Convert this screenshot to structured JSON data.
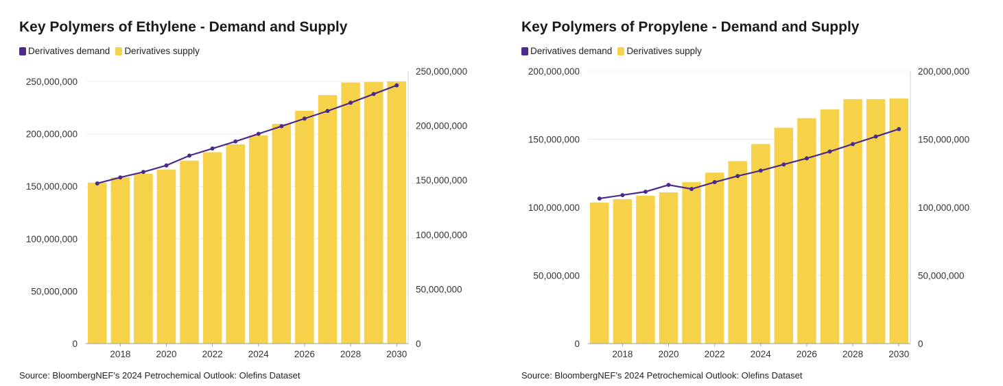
{
  "colors": {
    "demand": "#4b2a8c",
    "supply": "#f6d24a",
    "grid": "#ececec",
    "axis": "#999999"
  },
  "chart_data": [
    {
      "type": "bar",
      "title": "Key Polymers of Ethylene - Demand and Supply",
      "source": "Source: BloombergNEF’s 2024 Petrochemical Outlook: Olefins Dataset",
      "legend": [
        "Derivatives demand",
        "Derivatives supply"
      ],
      "legend_placement": "top-left",
      "x": [
        2017,
        2018,
        2019,
        2020,
        2021,
        2022,
        2023,
        2024,
        2025,
        2026,
        2027,
        2028,
        2029,
        2030
      ],
      "x_tick_labels": [
        "2018",
        "2020",
        "2022",
        "2024",
        "2026",
        "2028",
        "2030"
      ],
      "series": [
        {
          "name": "Derivatives supply",
          "type": "bar",
          "axis": "left",
          "values": [
            153500000,
            158500000,
            162000000,
            166000000,
            174500000,
            182500000,
            190000000,
            198500000,
            209500000,
            222000000,
            237000000,
            249000000,
            249500000,
            250000000
          ]
        },
        {
          "name": "Derivatives demand",
          "type": "line",
          "axis": "right",
          "values": [
            147000000,
            152500000,
            157500000,
            163500000,
            172500000,
            179000000,
            185500000,
            192500000,
            199500000,
            206500000,
            213500000,
            221000000,
            229000000,
            237000000
          ]
        }
      ],
      "ylim_left": [
        0,
        250000000
      ],
      "ylim_right": [
        0,
        250000000
      ],
      "y_left_ticks": [
        "0",
        "50,000,000",
        "100,000,000",
        "150,000,000",
        "200,000,000",
        "250,000,000"
      ],
      "y_right_ticks": [
        "0",
        "50,000,000",
        "100,000,000",
        "150,000,000",
        "200,000,000",
        "250,000,000"
      ],
      "grid": true
    },
    {
      "type": "bar",
      "title": "Key Polymers of Propylene - Demand and Supply",
      "source": "Source: BloombergNEF’s 2024 Petrochemical Outlook: Olefins Dataset",
      "legend": [
        "Derivatives demand",
        "Derivatives supply"
      ],
      "legend_placement": "top-left",
      "x": [
        2017,
        2018,
        2019,
        2020,
        2021,
        2022,
        2023,
        2024,
        2025,
        2026,
        2027,
        2028,
        2029,
        2030
      ],
      "x_tick_labels": [
        "2018",
        "2020",
        "2022",
        "2024",
        "2026",
        "2028",
        "2030"
      ],
      "series": [
        {
          "name": "Derivatives supply",
          "type": "bar",
          "axis": "left",
          "values": [
            103500000,
            106000000,
            108500000,
            111000000,
            118500000,
            125500000,
            134000000,
            146500000,
            158500000,
            165500000,
            172000000,
            179500000,
            179500000,
            180000000
          ]
        },
        {
          "name": "Derivatives demand",
          "type": "line",
          "axis": "right",
          "values": [
            106500000,
            109000000,
            111500000,
            116500000,
            113500000,
            118500000,
            123000000,
            127000000,
            131500000,
            136000000,
            141000000,
            146500000,
            152000000,
            157500000
          ]
        }
      ],
      "ylim_left": [
        0,
        200000000
      ],
      "ylim_right": [
        0,
        200000000
      ],
      "y_left_ticks": [
        "0",
        "50,000,000",
        "100,000,000",
        "150,000,000",
        "200,000,000"
      ],
      "y_right_ticks": [
        "0",
        "50,000,000",
        "100,000,000",
        "150,000,000",
        "200,000,000"
      ],
      "grid": true
    }
  ]
}
